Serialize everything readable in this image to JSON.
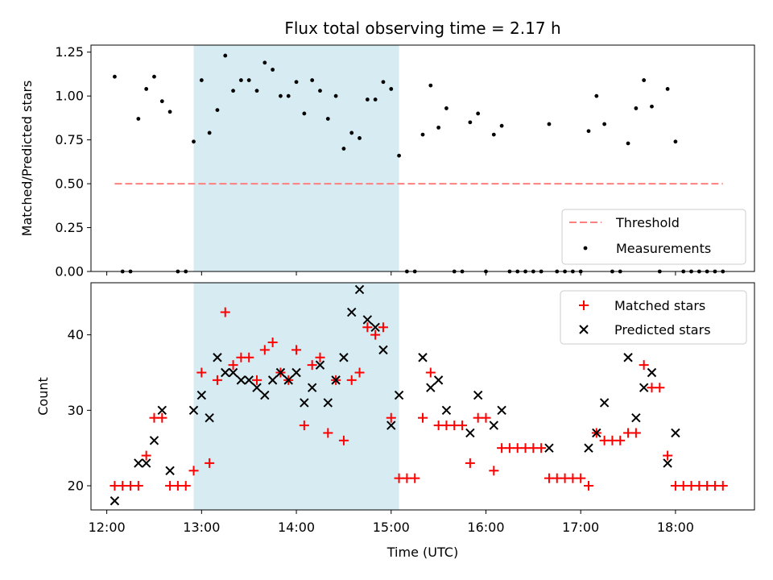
{
  "chart_data": [
    {
      "type": "scatter",
      "title": "Flux total observing time = 2.17 h",
      "xlabel": "",
      "ylabel": "Matched/Predicted stars",
      "xlim": [
        "11:50",
        "18:50"
      ],
      "ylim": [
        0,
        1.29
      ],
      "yticks": [
        0.0,
        0.25,
        0.5,
        0.75,
        1.0,
        1.25
      ],
      "ytick_labels": [
        "0.00",
        "0.25",
        "0.50",
        "0.75",
        "1.00",
        "1.25"
      ],
      "highlight_span": [
        "12:55",
        "15:05"
      ],
      "threshold": {
        "label": "Threshold",
        "value": 0.5,
        "x_range": [
          "12:05",
          "18:30"
        ],
        "color": "#ff7f7f"
      },
      "legend": {
        "position": "lower-right",
        "entries": [
          "Threshold",
          "Measurements"
        ]
      },
      "series": [
        {
          "name": "Measurements",
          "color": "#000000",
          "points": [
            [
              "12:05",
              1.11
            ],
            [
              "12:10",
              0
            ],
            [
              "12:15",
              0
            ],
            [
              "12:20",
              0.87
            ],
            [
              "12:25",
              1.04
            ],
            [
              "12:30",
              1.11
            ],
            [
              "12:35",
              0.97
            ],
            [
              "12:40",
              0.91
            ],
            [
              "12:45",
              0
            ],
            [
              "12:50",
              0
            ],
            [
              "12:55",
              0.74
            ],
            [
              "13:00",
              1.09
            ],
            [
              "13:05",
              0.79
            ],
            [
              "13:10",
              0.92
            ],
            [
              "13:15",
              1.23
            ],
            [
              "13:20",
              1.03
            ],
            [
              "13:25",
              1.09
            ],
            [
              "13:30",
              1.09
            ],
            [
              "13:35",
              1.03
            ],
            [
              "13:40",
              1.19
            ],
            [
              "13:45",
              1.15
            ],
            [
              "13:50",
              1.0
            ],
            [
              "13:55",
              1.0
            ],
            [
              "14:00",
              1.08
            ],
            [
              "14:05",
              0.9
            ],
            [
              "14:10",
              1.09
            ],
            [
              "14:15",
              1.03
            ],
            [
              "14:20",
              0.87
            ],
            [
              "14:25",
              1.0
            ],
            [
              "14:30",
              0.7
            ],
            [
              "14:35",
              0.79
            ],
            [
              "14:40",
              0.76
            ],
            [
              "14:45",
              0.98
            ],
            [
              "14:50",
              0.98
            ],
            [
              "14:55",
              1.08
            ],
            [
              "15:00",
              1.04
            ],
            [
              "15:05",
              0.66
            ],
            [
              "15:10",
              0
            ],
            [
              "15:15",
              0
            ],
            [
              "15:20",
              0.78
            ],
            [
              "15:25",
              1.06
            ],
            [
              "15:30",
              0.82
            ],
            [
              "15:35",
              0.93
            ],
            [
              "15:40",
              0
            ],
            [
              "15:45",
              0
            ],
            [
              "15:50",
              0.85
            ],
            [
              "15:55",
              0.9
            ],
            [
              "16:00",
              0
            ],
            [
              "16:05",
              0.78
            ],
            [
              "16:10",
              0.83
            ],
            [
              "16:15",
              0
            ],
            [
              "16:20",
              0
            ],
            [
              "16:25",
              0
            ],
            [
              "16:30",
              0
            ],
            [
              "16:35",
              0
            ],
            [
              "16:40",
              0.84
            ],
            [
              "16:45",
              0
            ],
            [
              "16:50",
              0
            ],
            [
              "16:55",
              0
            ],
            [
              "17:00",
              0
            ],
            [
              "17:05",
              0.8
            ],
            [
              "17:10",
              1.0
            ],
            [
              "17:15",
              0.84
            ],
            [
              "17:20",
              0
            ],
            [
              "17:25",
              0
            ],
            [
              "17:30",
              0.73
            ],
            [
              "17:35",
              0.93
            ],
            [
              "17:40",
              1.09
            ],
            [
              "17:45",
              0.94
            ],
            [
              "17:50",
              0
            ],
            [
              "17:55",
              1.04
            ],
            [
              "18:00",
              0.74
            ],
            [
              "18:05",
              0
            ],
            [
              "18:10",
              0
            ],
            [
              "18:15",
              0
            ],
            [
              "18:20",
              0
            ],
            [
              "18:25",
              0
            ],
            [
              "18:30",
              0
            ]
          ]
        }
      ]
    },
    {
      "type": "scatter",
      "title": "",
      "xlabel": "Time (UTC)",
      "ylabel": "Count",
      "xlim": [
        "11:50",
        "18:50"
      ],
      "ylim": [
        16.8,
        46.9
      ],
      "yticks": [
        20,
        30,
        40
      ],
      "ytick_labels": [
        "20",
        "30",
        "40"
      ],
      "xticks": [
        "12:00",
        "13:00",
        "14:00",
        "15:00",
        "16:00",
        "17:00",
        "18:00"
      ],
      "xtick_labels": [
        "12:00",
        "13:00",
        "14:00",
        "15:00",
        "16:00",
        "17:00",
        "18:00"
      ],
      "highlight_span": [
        "12:55",
        "15:05"
      ],
      "legend": {
        "position": "top-right",
        "entries": [
          "Matched stars",
          "Predicted stars"
        ]
      },
      "series": [
        {
          "name": "Matched stars",
          "marker": "plus",
          "color": "#ff0000",
          "points": [
            [
              "12:05",
              20
            ],
            [
              "12:10",
              20
            ],
            [
              "12:15",
              20
            ],
            [
              "12:20",
              20
            ],
            [
              "12:25",
              24
            ],
            [
              "12:30",
              29
            ],
            [
              "12:35",
              29
            ],
            [
              "12:40",
              20
            ],
            [
              "12:45",
              20
            ],
            [
              "12:50",
              20
            ],
            [
              "12:55",
              22
            ],
            [
              "13:00",
              35
            ],
            [
              "13:05",
              23
            ],
            [
              "13:10",
              34
            ],
            [
              "13:15",
              43
            ],
            [
              "13:20",
              36
            ],
            [
              "13:25",
              37
            ],
            [
              "13:30",
              37
            ],
            [
              "13:35",
              34
            ],
            [
              "13:40",
              38
            ],
            [
              "13:45",
              39
            ],
            [
              "13:50",
              35
            ],
            [
              "13:55",
              34
            ],
            [
              "14:00",
              38
            ],
            [
              "14:05",
              28
            ],
            [
              "14:10",
              36
            ],
            [
              "14:15",
              37
            ],
            [
              "14:20",
              27
            ],
            [
              "14:25",
              34
            ],
            [
              "14:30",
              26
            ],
            [
              "14:35",
              34
            ],
            [
              "14:40",
              35
            ],
            [
              "14:45",
              41
            ],
            [
              "14:50",
              40
            ],
            [
              "14:55",
              41
            ],
            [
              "15:00",
              29
            ],
            [
              "15:05",
              21
            ],
            [
              "15:10",
              21
            ],
            [
              "15:15",
              21
            ],
            [
              "15:20",
              29
            ],
            [
              "15:25",
              35
            ],
            [
              "15:30",
              28
            ],
            [
              "15:35",
              28
            ],
            [
              "15:40",
              28
            ],
            [
              "15:45",
              28
            ],
            [
              "15:50",
              23
            ],
            [
              "15:55",
              29
            ],
            [
              "16:00",
              29
            ],
            [
              "16:05",
              22
            ],
            [
              "16:10",
              25
            ],
            [
              "16:15",
              25
            ],
            [
              "16:20",
              25
            ],
            [
              "16:25",
              25
            ],
            [
              "16:30",
              25
            ],
            [
              "16:35",
              25
            ],
            [
              "16:40",
              21
            ],
            [
              "16:45",
              21
            ],
            [
              "16:50",
              21
            ],
            [
              "16:55",
              21
            ],
            [
              "17:00",
              21
            ],
            [
              "17:05",
              20
            ],
            [
              "17:10",
              27
            ],
            [
              "17:15",
              26
            ],
            [
              "17:20",
              26
            ],
            [
              "17:25",
              26
            ],
            [
              "17:30",
              27
            ],
            [
              "17:35",
              27
            ],
            [
              "17:40",
              36
            ],
            [
              "17:45",
              33
            ],
            [
              "17:50",
              33
            ],
            [
              "17:55",
              24
            ],
            [
              "18:00",
              20
            ],
            [
              "18:05",
              20
            ],
            [
              "18:10",
              20
            ],
            [
              "18:15",
              20
            ],
            [
              "18:20",
              20
            ],
            [
              "18:25",
              20
            ],
            [
              "18:30",
              20
            ]
          ]
        },
        {
          "name": "Predicted stars",
          "marker": "x",
          "color": "#000000",
          "points": [
            [
              "12:05",
              18
            ],
            [
              "12:20",
              23
            ],
            [
              "12:25",
              23
            ],
            [
              "12:30",
              26
            ],
            [
              "12:35",
              30
            ],
            [
              "12:40",
              22
            ],
            [
              "12:55",
              30
            ],
            [
              "13:00",
              32
            ],
            [
              "13:05",
              29
            ],
            [
              "13:10",
              37
            ],
            [
              "13:15",
              35
            ],
            [
              "13:20",
              35
            ],
            [
              "13:25",
              34
            ],
            [
              "13:30",
              34
            ],
            [
              "13:35",
              33
            ],
            [
              "13:40",
              32
            ],
            [
              "13:45",
              34
            ],
            [
              "13:50",
              35
            ],
            [
              "13:55",
              34
            ],
            [
              "14:00",
              35
            ],
            [
              "14:05",
              31
            ],
            [
              "14:10",
              33
            ],
            [
              "14:15",
              36
            ],
            [
              "14:20",
              31
            ],
            [
              "14:25",
              34
            ],
            [
              "14:30",
              37
            ],
            [
              "14:35",
              43
            ],
            [
              "14:40",
              46
            ],
            [
              "14:45",
              42
            ],
            [
              "14:50",
              41
            ],
            [
              "14:55",
              38
            ],
            [
              "15:00",
              28
            ],
            [
              "15:05",
              32
            ],
            [
              "15:20",
              37
            ],
            [
              "15:25",
              33
            ],
            [
              "15:30",
              34
            ],
            [
              "15:35",
              30
            ],
            [
              "15:50",
              27
            ],
            [
              "15:55",
              32
            ],
            [
              "16:05",
              28
            ],
            [
              "16:10",
              30
            ],
            [
              "16:40",
              25
            ],
            [
              "17:05",
              25
            ],
            [
              "17:10",
              27
            ],
            [
              "17:15",
              31
            ],
            [
              "17:30",
              37
            ],
            [
              "17:35",
              29
            ],
            [
              "17:40",
              33
            ],
            [
              "17:45",
              35
            ],
            [
              "17:55",
              23
            ],
            [
              "18:00",
              27
            ]
          ]
        }
      ]
    }
  ]
}
